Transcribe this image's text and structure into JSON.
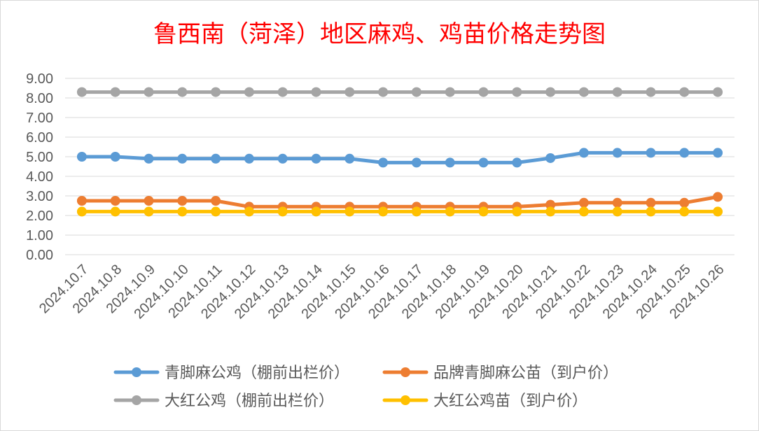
{
  "chart_data": {
    "type": "line",
    "title": "鲁西南（菏泽）地区麻鸡、鸡苗价格走势图",
    "xlabel": "",
    "ylabel": "",
    "ylim": [
      0,
      9
    ],
    "ytick_step": 1,
    "ytick_labels": [
      "0.00",
      "1.00",
      "2.00",
      "3.00",
      "4.00",
      "5.00",
      "6.00",
      "7.00",
      "8.00",
      "9.00"
    ],
    "categories": [
      "2024.10.7",
      "2024.10.8",
      "2024.10.9",
      "2024.10.10",
      "2024.10.11",
      "2024.10.12",
      "2024.10.13",
      "2024.10.14",
      "2024.10.15",
      "2024.10.16",
      "2024.10.17",
      "2024.10.18",
      "2024.10.19",
      "2024.10.20",
      "2024.10.21",
      "2024.10.22",
      "2024.10.23",
      "2024.10.24",
      "2024.10.25",
      "2024.10.26"
    ],
    "grid": true,
    "legend_position": "bottom",
    "series": [
      {
        "name": "青脚麻公鸡（棚前出栏价）",
        "color": "#5b9bd5",
        "values": [
          5.0,
          5.0,
          4.9,
          4.9,
          4.9,
          4.9,
          4.9,
          4.9,
          4.9,
          4.7,
          4.7,
          4.7,
          4.7,
          4.7,
          4.93,
          5.2,
          5.2,
          5.2,
          5.2,
          5.2
        ]
      },
      {
        "name": "品牌青脚麻公苗（到户价）",
        "color": "#ed7d31",
        "values": [
          2.75,
          2.75,
          2.75,
          2.75,
          2.75,
          2.45,
          2.45,
          2.45,
          2.45,
          2.45,
          2.45,
          2.45,
          2.45,
          2.45,
          2.55,
          2.65,
          2.65,
          2.65,
          2.65,
          2.95
        ]
      },
      {
        "name": "大红公鸡（棚前出栏价）",
        "color": "#a5a5a5",
        "values": [
          8.3,
          8.3,
          8.3,
          8.3,
          8.3,
          8.3,
          8.3,
          8.3,
          8.3,
          8.3,
          8.3,
          8.3,
          8.3,
          8.3,
          8.3,
          8.3,
          8.3,
          8.3,
          8.3,
          8.3
        ]
      },
      {
        "name": "大红公鸡苗（到户价）",
        "color": "#ffc000",
        "values": [
          2.2,
          2.2,
          2.2,
          2.2,
          2.2,
          2.2,
          2.2,
          2.2,
          2.2,
          2.2,
          2.2,
          2.2,
          2.2,
          2.2,
          2.2,
          2.2,
          2.2,
          2.2,
          2.2,
          2.2
        ]
      }
    ],
    "title_color": "#ff0000",
    "text_color": "#595959",
    "grid_color": "#d9d9d9"
  }
}
